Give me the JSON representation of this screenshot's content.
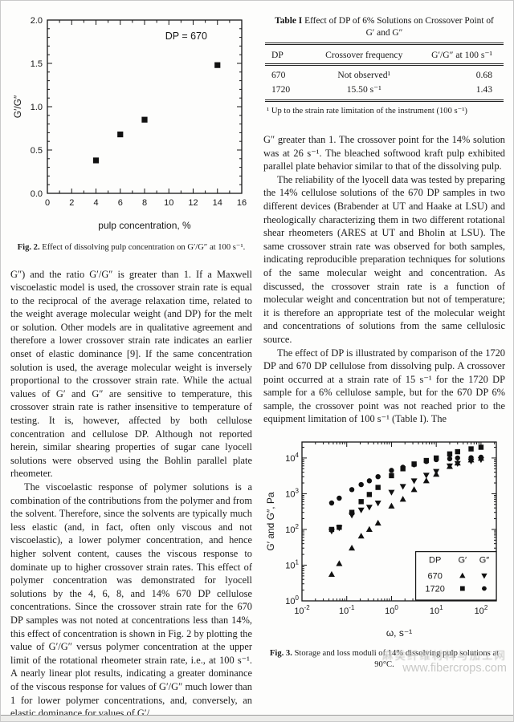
{
  "figures": {
    "fig2": {
      "label": "Fig. 2.",
      "text": "Effect of dissolving pulp concentration on G′/G″ at 100 s⁻¹."
    },
    "fig3": {
      "label": "Fig. 3.",
      "text": "Storage and loss moduli of 14% dissolving pulp solutions at 90°C."
    }
  },
  "table": {
    "label": "Table I",
    "title": "Effect of DP of 6% Solutions on Crossover Point of G′ and G″",
    "columns": [
      "DP",
      "Crossover frequency",
      "G′/G″ at 100 s⁻¹"
    ],
    "rows": [
      [
        "670",
        "Not observed¹",
        "0.68"
      ],
      [
        "1720",
        "15.50 s⁻¹",
        "1.43"
      ]
    ],
    "footnote": "¹ Up to the strain rate limitation of the instrument (100 s⁻¹)"
  },
  "left_column": {
    "p1": "G″) and the ratio G′/G″ is greater than 1. If a Maxwell viscoelastic model is used, the crossover strain rate is equal to the reciprocal of the average relaxation time, related to the weight average molecular weight (and DP) for the melt or solution. Other models are in qualitative agreement and therefore a lower crossover strain rate indicates an earlier onset of elastic dominance [9]. If the same concentration solution is used, the average molecular weight is inversely proportional to the crossover strain rate. While the actual values of G′ and G″ are sensitive to temperature, this crossover strain rate is rather insensitive to temperature of testing. It is, however, affected by both cellulose concentration and cellulose DP. Although not reported herein, similar shearing properties of sugar cane lyocell solutions were observed using the Bohlin parallel plate rheometer.",
    "p2": "The viscoelastic response of polymer solutions is a combination of the contributions from the polymer and from the solvent. Therefore, since the solvents are typically much less elastic (and, in fact, often only viscous and not viscoelastic), a lower polymer concentration, and hence higher solvent content, causes the viscous response to dominate up to higher crossover strain rates. This effect of polymer concentration was demonstrated for lyocell solutions by the 4, 6, 8, and 14% 670 DP cellulose concentrations. Since the crossover strain rate for the 670 DP samples was not noted at concentrations less than 14%, this effect of concentration is shown in Fig. 2 by plotting the value of G′/G″ versus polymer concentration at the upper limit of the rotational rheometer strain rate, i.e., at 100 s⁻¹. A nearly linear plot results, indicating a greater dominance of the viscous response for values of G′/G″ much lower than 1 for lower polymer concentrations, and, conversely, an elastic dominance for values of G′/"
  },
  "right_column": {
    "p1": "G″ greater than 1. The crossover point for the 14% solution was at 26 s⁻¹. The bleached softwood kraft pulp exhibited parallel plate behavior similar to that of the dissolving pulp.",
    "p2": "The reliability of the lyocell data was tested by preparing the 14% cellulose solutions of the 670 DP samples in two different devices (Brabender at UT and Haake at LSU) and rheologically characterizing them in two different rotational shear rheometers (ARES at UT and Bholin at LSU). The same crossover strain rate was observed for both samples, indicating reproducible preparation techniques for solutions of the same molecular weight and concentration. As discussed, the crossover strain rate is a function of molecular weight and concentration but not of temperature; it is therefore an appropriate test of the molecular weight and concentrations of solutions from the same cellulosic source.",
    "p3": "The effect of DP is illustrated by comparison of the 1720 DP and 670 DP cellulose from dissolving pulp. A crossover point occurred at a strain rate of 15 s⁻¹ for the 1720 DP sample for a 6% cellulose sample, but for the 670 DP 6% sample, the crossover point was not reached prior to the equipment limitation of 100 s⁻¹ (Table I). The"
  },
  "watermark": {
    "line1": "麻类纤维材料与加工网",
    "line2": "www.fibercrops.com"
  },
  "chart_data": [
    {
      "id": "fig2",
      "type": "scatter",
      "annotation": "DP = 670",
      "xlabel": "pulp concentration, %",
      "ylabel": "G′/G″",
      "xlim": [
        0,
        16
      ],
      "ylim": [
        0,
        2.0
      ],
      "xticks": [
        0,
        2,
        4,
        6,
        8,
        10,
        12,
        14,
        16
      ],
      "yticks": [
        "0.0",
        "0.5",
        "1.0",
        "1.5",
        "2.0"
      ],
      "grid": false,
      "marker": "square",
      "x": [
        4,
        6,
        8,
        14
      ],
      "y": [
        0.38,
        0.68,
        0.85,
        1.48
      ]
    },
    {
      "id": "fig3",
      "type": "scatter",
      "xscale": "log",
      "yscale": "log",
      "xlabel": "ω, s⁻¹",
      "ylabel": "G′ and G″, Pa",
      "xlim": [
        0.01,
        220
      ],
      "ylim": [
        1,
        28000
      ],
      "xtick_exponents": [
        -2,
        -1,
        0,
        1,
        2
      ],
      "ytick_exponents": [
        0,
        1,
        2,
        3,
        4
      ],
      "grid": false,
      "x": [
        0.046,
        0.068,
        0.13,
        0.21,
        0.32,
        0.5,
        1.0,
        1.8,
        3.2,
        6.0,
        10,
        20,
        30,
        60,
        100
      ],
      "series": [
        {
          "name": "670 G′",
          "marker": "triangle-up",
          "values": [
            5.5,
            11,
            30,
            65,
            100,
            150,
            450,
            700,
            1300,
            2300,
            3500,
            5800,
            7200,
            8800,
            9800
          ]
        },
        {
          "name": "670 G″",
          "marker": "triangle-down",
          "values": [
            90,
            110,
            250,
            350,
            420,
            550,
            1100,
            1600,
            2300,
            3300,
            4200,
            6000,
            7000,
            8200,
            9000
          ]
        },
        {
          "name": "1720 G′",
          "marker": "square",
          "values": [
            100,
            115,
            300,
            600,
            950,
            1500,
            3200,
            5000,
            6800,
            8500,
            10000,
            13000,
            15000,
            18000,
            20000
          ]
        },
        {
          "name": "1720 G″",
          "marker": "circle",
          "values": [
            550,
            750,
            1300,
            1800,
            2300,
            3000,
            4500,
            5500,
            6500,
            8000,
            9000,
            9500,
            10000,
            10200,
            10500
          ]
        }
      ],
      "legend": {
        "position": "bottom-right",
        "header": [
          "DP",
          "G′",
          "G″"
        ],
        "rows": [
          {
            "dp": "670",
            "gprime": "triangle-up",
            "gdouble": "triangle-down"
          },
          {
            "dp": "1720",
            "gprime": "square",
            "gdouble": "circle"
          }
        ]
      }
    }
  ]
}
